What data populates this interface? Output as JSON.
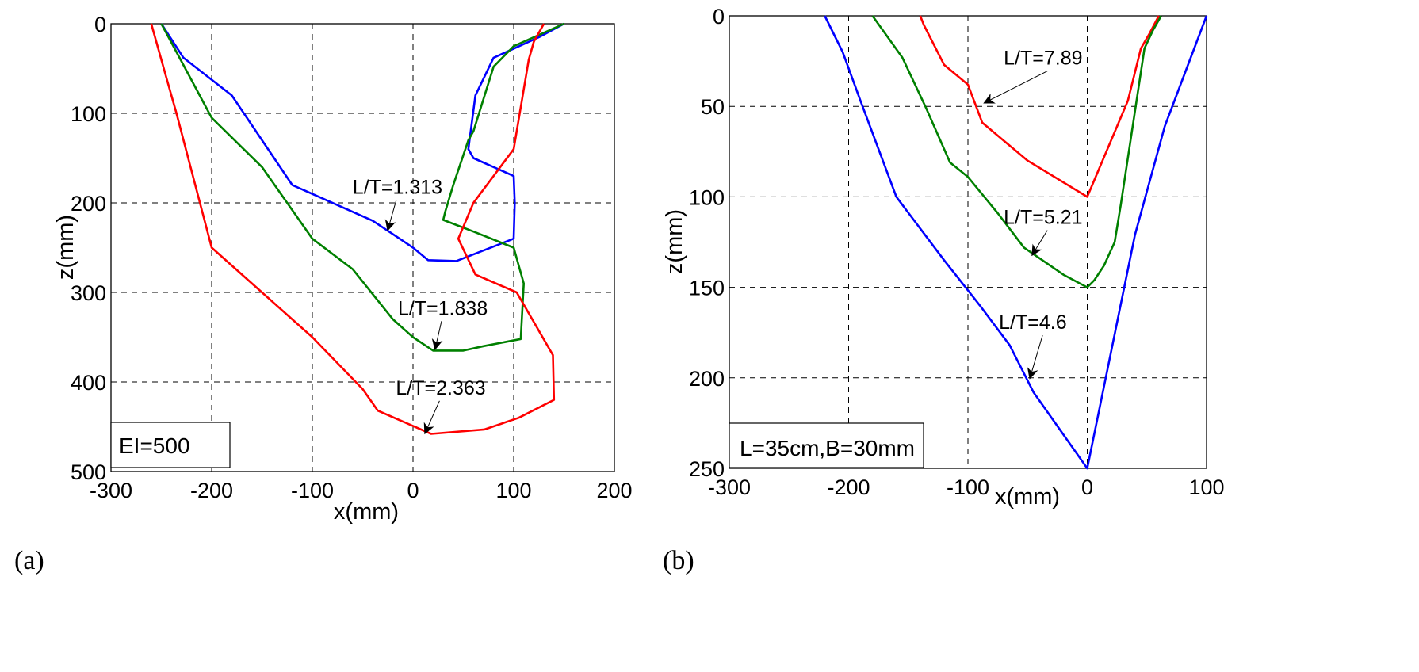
{
  "chart_data": [
    {
      "type": "line",
      "panel_label": "(a)",
      "xlabel": "x(mm)",
      "ylabel": "z(mm)",
      "xlim": [
        -300,
        200
      ],
      "ylim": [
        0,
        500
      ],
      "y_inverted": true,
      "grid": true,
      "xticks": [
        "-300",
        "-200",
        "-100",
        "0",
        "100",
        "200"
      ],
      "yticks": [
        "0",
        "100",
        "200",
        "300",
        "400",
        "500"
      ],
      "legend_box": "EI=500",
      "legend_position": "bottom-left",
      "series": [
        {
          "color": "#0000ff",
          "x": [
            -250,
            -228,
            -180,
            -120,
            -40,
            0,
            15,
            43,
            100,
            101,
            100,
            80,
            60,
            55,
            62,
            80,
            125,
            150
          ],
          "y": [
            0,
            38,
            80,
            180,
            220,
            250,
            264,
            265,
            240,
            200,
            170,
            160,
            150,
            140,
            80,
            38,
            15,
            0
          ]
        },
        {
          "color": "#008000",
          "x": [
            -250,
            -200,
            -150,
            -100,
            -60,
            -20,
            0,
            20,
            50,
            70,
            107,
            110,
            100,
            60,
            30,
            32,
            40,
            55,
            60,
            80,
            100,
            150
          ],
          "y": [
            0,
            105,
            160,
            240,
            274,
            330,
            350,
            365,
            365,
            360,
            352,
            290,
            250,
            232,
            219,
            210,
            180,
            130,
            120,
            48,
            25,
            0
          ]
        },
        {
          "color": "#ff0000",
          "x": [
            -260,
            -245,
            -235,
            -200,
            -150,
            -100,
            -50,
            -35,
            18,
            71,
            105,
            140,
            139,
            103,
            62,
            45,
            60,
            80,
            100,
            115,
            120,
            130
          ],
          "y": [
            0,
            60,
            100,
            250,
            300,
            350,
            408,
            432,
            458,
            453,
            440,
            420,
            370,
            300,
            280,
            240,
            200,
            170,
            140,
            40,
            20,
            0
          ]
        }
      ],
      "annotations": [
        {
          "text": "L/T=1.313",
          "x": -60,
          "y": 190,
          "arrow_to": [
            -25,
            230
          ]
        },
        {
          "text": "L/T=1.838",
          "x": -15,
          "y": 325,
          "arrow_to": [
            22,
            363
          ]
        },
        {
          "text": "L/T=2.363",
          "x": -17,
          "y": 414,
          "arrow_to": [
            12,
            457
          ]
        }
      ]
    },
    {
      "type": "line",
      "panel_label": "(b)",
      "xlabel": "x(mm)",
      "ylabel": "z(mm)",
      "xlim": [
        -300,
        100
      ],
      "ylim": [
        0,
        250
      ],
      "y_inverted": true,
      "grid": true,
      "xticks": [
        "-300",
        "-200",
        "-100",
        "0",
        "100"
      ],
      "yticks": [
        "0",
        "50",
        "100",
        "150",
        "200",
        "250"
      ],
      "legend_box": "L=35cm,B=30mm",
      "legend_position": "bottom-left",
      "series": [
        {
          "color": "#ff0000",
          "x": [
            -140,
            -137,
            -120,
            -100,
            -88,
            -50,
            0,
            34,
            45,
            52,
            60
          ],
          "y": [
            0,
            5,
            27,
            38,
            59,
            80,
            100,
            47,
            18,
            10,
            0
          ]
        },
        {
          "color": "#008000",
          "x": [
            -180,
            -155,
            -135,
            -115,
            -100,
            -75,
            -53,
            -20,
            0,
            6,
            14,
            23,
            28,
            48,
            55,
            62
          ],
          "y": [
            0,
            23,
            51,
            81,
            89,
            109,
            128,
            143,
            150,
            146,
            138,
            125,
            105,
            18,
            8,
            0
          ]
        },
        {
          "color": "#0000ff",
          "x": [
            -220,
            -205,
            -190,
            -160,
            -120,
            -90,
            -65,
            -45,
            0,
            40,
            65,
            100
          ],
          "y": [
            0,
            20,
            47,
            100,
            135,
            160,
            182,
            208,
            250,
            121,
            61,
            0
          ]
        }
      ],
      "annotations": [
        {
          "text": "L/T=7.89",
          "x": -70,
          "y": 27,
          "arrow_to": [
            -86,
            48
          ]
        },
        {
          "text": "L/T=5.21",
          "x": -70,
          "y": 115,
          "arrow_to": [
            -46,
            132
          ]
        },
        {
          "text": "L/T=4.6",
          "x": -74,
          "y": 173,
          "arrow_to": [
            -48,
            200
          ]
        }
      ]
    }
  ]
}
